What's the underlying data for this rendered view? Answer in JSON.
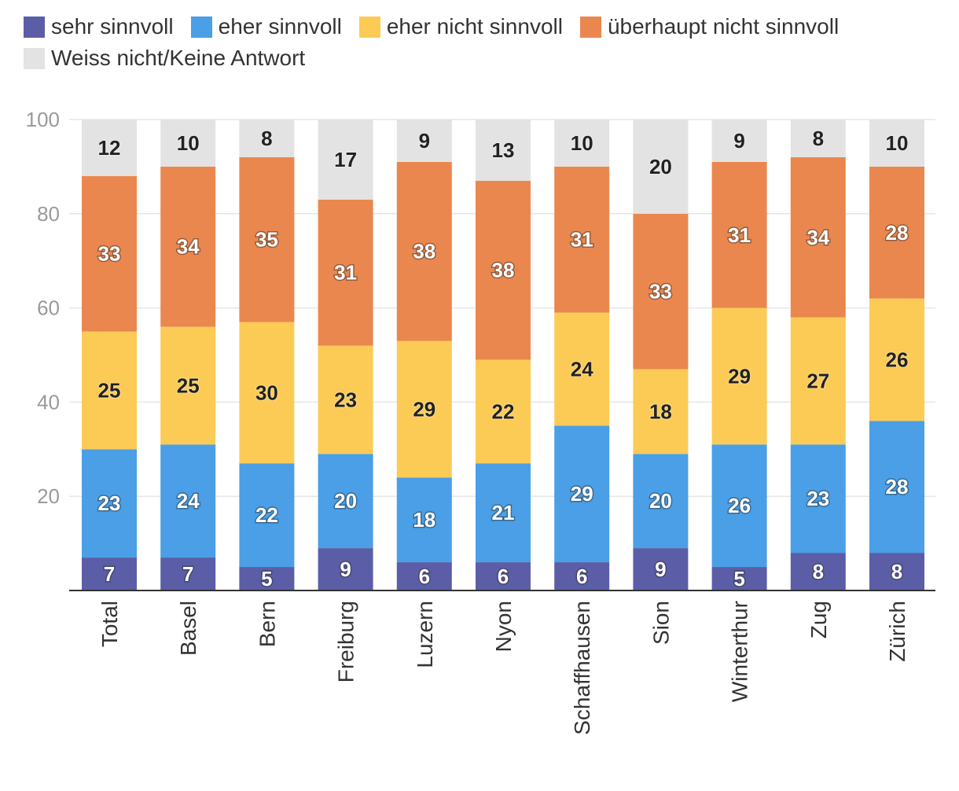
{
  "chart_data": {
    "type": "bar",
    "stacked": true,
    "title": "",
    "xlabel": "",
    "ylabel": "",
    "ylim": [
      0,
      100
    ],
    "yticks": [
      20,
      40,
      60,
      80,
      100
    ],
    "categories": [
      "Total",
      "Basel",
      "Bern",
      "Freiburg",
      "Luzern",
      "Nyon",
      "Schaffhausen",
      "Sion",
      "Winterthur",
      "Zug",
      "Zürich"
    ],
    "series": [
      {
        "name": "sehr sinnvoll",
        "color": "#5b5ea6",
        "label_color": "#ffffff",
        "values": [
          7,
          7,
          5,
          9,
          6,
          6,
          6,
          9,
          5,
          8,
          8
        ]
      },
      {
        "name": "eher sinnvoll",
        "color": "#4a9fe6",
        "label_color": "#ffffff",
        "values": [
          23,
          24,
          22,
          20,
          18,
          21,
          29,
          20,
          26,
          23,
          28
        ]
      },
      {
        "name": "eher nicht sinnvoll",
        "color": "#fccb55",
        "label_color": "#222222",
        "values": [
          25,
          25,
          30,
          23,
          29,
          22,
          24,
          18,
          29,
          27,
          26
        ]
      },
      {
        "name": "überhaupt nicht sinnvoll",
        "color": "#ea874f",
        "label_color": "#ffffff",
        "values": [
          33,
          34,
          35,
          31,
          38,
          38,
          31,
          33,
          31,
          34,
          28
        ]
      },
      {
        "name": "Weiss nicht/Keine Antwort",
        "color": "#e3e3e3",
        "label_color": "#222222",
        "values": [
          12,
          10,
          8,
          17,
          9,
          13,
          10,
          20,
          9,
          8,
          10
        ]
      }
    ],
    "grid": true,
    "legend": "top-left"
  }
}
